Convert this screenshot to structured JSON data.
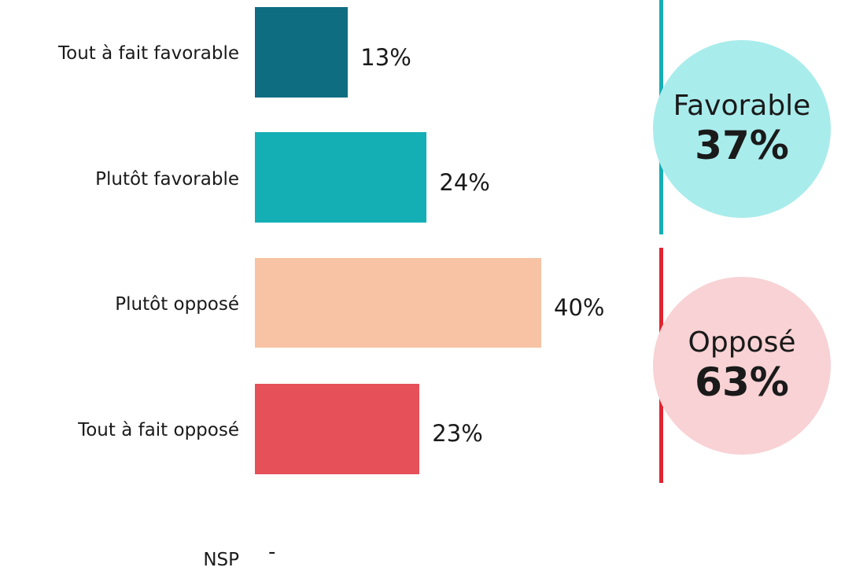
{
  "chart_data": {
    "type": "bar",
    "orientation": "horizontal",
    "categories": [
      "Tout à fait favorable",
      "Plutôt favorable",
      "Plutôt opposé",
      "Tout à fait opposé"
    ],
    "values": [
      13,
      24,
      40,
      23
    ],
    "value_labels": [
      "13%",
      "24%",
      "40%",
      "23%"
    ],
    "colors": [
      "#0f6d82",
      "#14afb5",
      "#f7c3a4",
      "#e65058"
    ],
    "xlim": [
      0,
      44
    ],
    "groups": [
      {
        "title": "Favorable",
        "value": 37,
        "value_label": "37%",
        "bubble_color": "#a9ecec",
        "line_color": "#14afb5"
      },
      {
        "title": "Opposé",
        "value": 63,
        "value_label": "63%",
        "bubble_color": "#f8d2d4",
        "line_color": "#e02531"
      }
    ],
    "extra_row": {
      "label": "NSP",
      "value": "-"
    }
  }
}
